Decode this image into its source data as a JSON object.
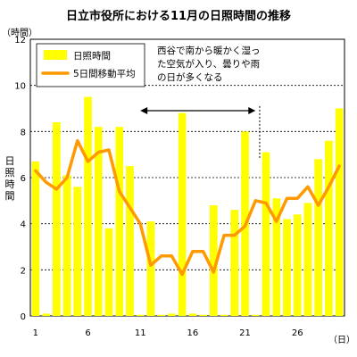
{
  "chart_data": {
    "type": "bar",
    "title": "日立市役所における11月の日照時間の推移",
    "ylabel": "日照時間",
    "yunit": "（時間）",
    "xunit": "（日）",
    "ylim": [
      0,
      12
    ],
    "yticks": [
      0,
      2,
      4,
      6,
      8,
      10,
      12
    ],
    "xticks": [
      1,
      6,
      11,
      16,
      21,
      26
    ],
    "grid": true,
    "legend_position": "top-left",
    "bar_color": "#ffff00",
    "line_color": "#ff9900",
    "categories": [
      1,
      2,
      3,
      4,
      5,
      6,
      7,
      8,
      9,
      10,
      11,
      12,
      13,
      14,
      15,
      16,
      17,
      18,
      19,
      20,
      21,
      22,
      23,
      24,
      25,
      26,
      27,
      28,
      29,
      30
    ],
    "series": [
      {
        "name": "日照時間",
        "kind": "bar",
        "values": [
          6.7,
          0.1,
          8.4,
          6.1,
          5.6,
          9.5,
          8.2,
          3.8,
          8.2,
          6.5,
          0.05,
          4.1,
          0.05,
          0.1,
          8.8,
          0.1,
          0.05,
          4.8,
          0.05,
          4.6,
          8.0,
          0.05,
          7.1,
          5.1,
          4.2,
          4.4,
          4.9,
          6.8,
          7.6,
          9.0
        ]
      },
      {
        "name": "5日間移動平均",
        "kind": "line",
        "values": [
          6.3,
          5.8,
          5.5,
          6.0,
          7.6,
          6.7,
          7.1,
          7.2,
          5.4,
          4.7,
          4.0,
          2.2,
          2.6,
          2.6,
          1.8,
          2.8,
          2.8,
          1.9,
          3.5,
          3.5,
          3.9,
          5.0,
          4.9,
          4.1,
          5.1,
          5.1,
          5.6,
          4.8,
          5.6,
          6.5
        ]
      }
    ],
    "annotation": {
      "lines": [
        "西谷で南から暖かく湿っ",
        "た空気が入り、曇りや雨",
        "の日が多くなる"
      ],
      "arrow_from": 10.5,
      "arrow_to": 21.5,
      "marker_day": 22,
      "marker_range": [
        6.8,
        9.1
      ]
    }
  }
}
